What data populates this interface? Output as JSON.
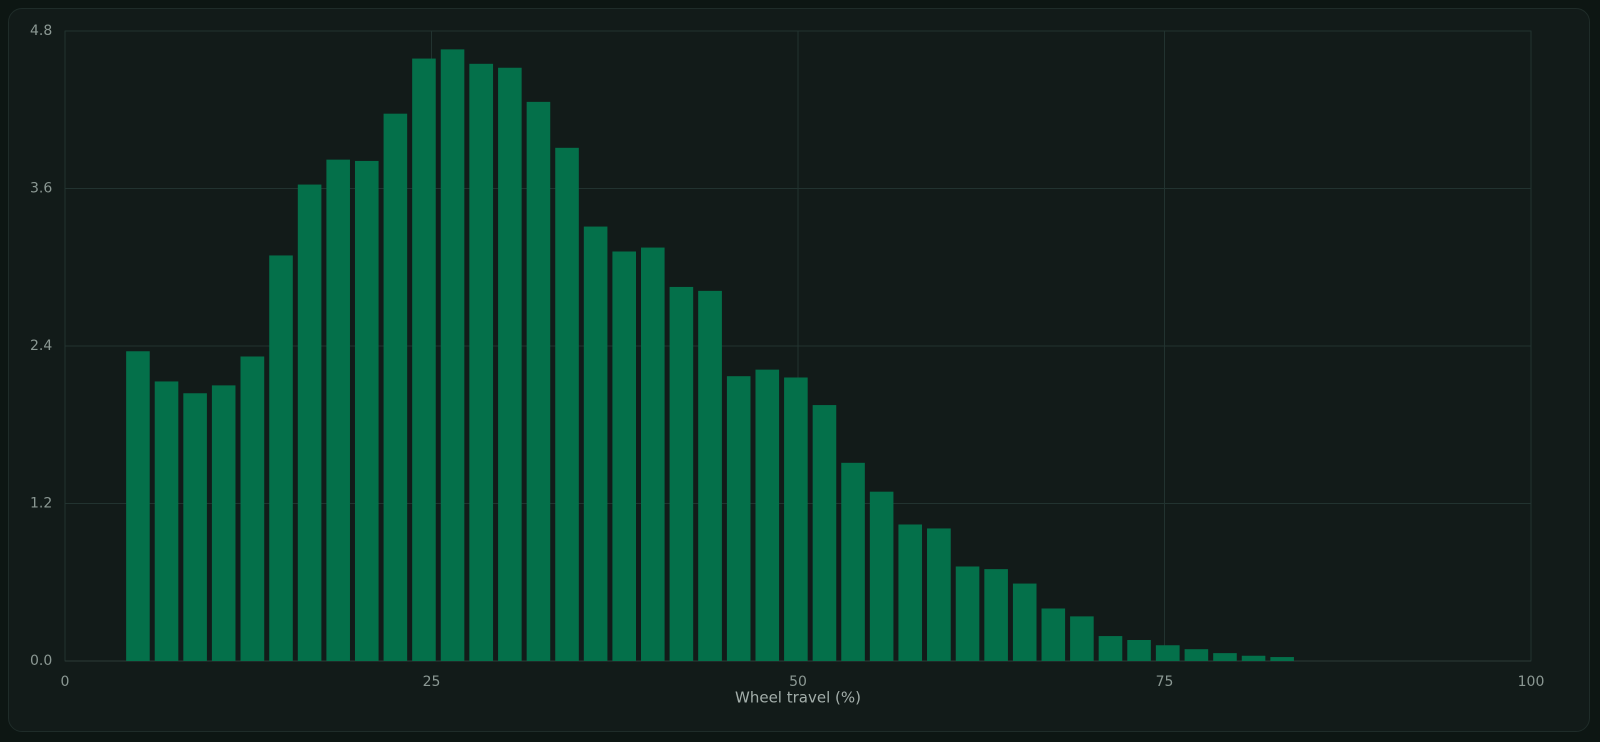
{
  "chart_data": {
    "type": "histogram",
    "x_label": "Wheel travel (%)",
    "bins": [
      4,
      5.95,
      7.9,
      9.85,
      11.8,
      13.76,
      15.71,
      17.66,
      19.61,
      21.56,
      23.51,
      25.46,
      27.41,
      29.37,
      31.32,
      33.27,
      35.22,
      37.17,
      39.12,
      41.07,
      43.02,
      44.98,
      46.93,
      48.88,
      50.83,
      52.78,
      54.73,
      56.68,
      58.63,
      60.59,
      62.54,
      64.49,
      66.44,
      68.39,
      70.34,
      72.29,
      74.24,
      76.2,
      78.15,
      80.1,
      82.05,
      84
    ],
    "values": [
      2.36,
      2.13,
      2.04,
      2.1,
      2.32,
      3.09,
      3.63,
      3.82,
      3.81,
      4.17,
      4.59,
      4.66,
      4.55,
      4.52,
      4.26,
      3.91,
      3.31,
      3.12,
      3.15,
      2.85,
      2.82,
      2.17,
      2.22,
      2.16,
      1.95,
      1.51,
      1.29,
      1.04,
      1.01,
      0.72,
      0.7,
      0.59,
      0.4,
      0.34,
      0.19,
      0.16,
      0.12,
      0.09,
      0.06,
      0.04,
      0.03
    ],
    "color": "#04704a",
    "xlim": [
      0,
      100
    ],
    "xticks": [
      0,
      25,
      50,
      75,
      100
    ],
    "ylim": [
      0,
      4.8
    ],
    "yticks": [
      {
        "value": 0,
        "label": "0.0"
      },
      1.2,
      2.4,
      3.6,
      4.8
    ],
    "grid": true
  }
}
